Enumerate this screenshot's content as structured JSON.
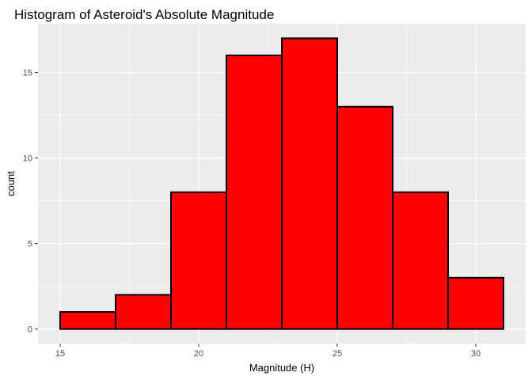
{
  "chart_data": {
    "type": "bar",
    "title": "Histogram of Asteroid's Absolute Magnitude",
    "xlabel": "Magnitude (H)",
    "ylabel": "count",
    "bins": [
      {
        "start": 15,
        "end": 17,
        "count": 1
      },
      {
        "start": 17,
        "end": 19,
        "count": 2
      },
      {
        "start": 19,
        "end": 21,
        "count": 8
      },
      {
        "start": 21,
        "end": 23,
        "count": 16
      },
      {
        "start": 23,
        "end": 25,
        "count": 17
      },
      {
        "start": 25,
        "end": 27,
        "count": 13
      },
      {
        "start": 27,
        "end": 29,
        "count": 8
      },
      {
        "start": 29,
        "end": 31,
        "count": 3
      }
    ],
    "xlim": [
      14.2,
      31.8
    ],
    "ylim": [
      -0.85,
      17.85
    ],
    "x_ticks": [
      15,
      20,
      25,
      30
    ],
    "x_tick_labels": [
      "15",
      "20",
      "25",
      "30"
    ],
    "y_ticks": [
      0,
      5,
      10,
      15
    ],
    "y_tick_labels": [
      "0",
      "5",
      "10",
      "15"
    ],
    "x_minor_ticks": [
      17.5,
      22.5,
      27.5
    ],
    "y_minor_ticks": [
      2.5,
      7.5,
      12.5
    ],
    "grid": true,
    "colors": {
      "bar_fill": "#ff0000",
      "bar_stroke": "#000000",
      "panel_background": "#ebebeb",
      "grid_line": "#ffffff",
      "tick_label": "#4d4d4d"
    }
  }
}
